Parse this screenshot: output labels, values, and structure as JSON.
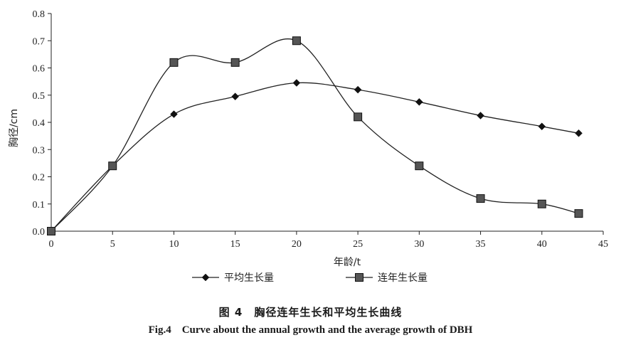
{
  "chart_data": {
    "type": "line",
    "title": "",
    "xlabel": "年龄/t",
    "ylabel": "胸径/cm",
    "xlim": [
      0,
      45
    ],
    "ylim": [
      0,
      0.8
    ],
    "xticks": [
      0,
      5,
      10,
      15,
      20,
      25,
      30,
      35,
      40,
      45
    ],
    "yticks": [
      0.0,
      0.1,
      0.2,
      0.3,
      0.4,
      0.5,
      0.6,
      0.7,
      0.8
    ],
    "ytick_labels": [
      "0.0",
      "0.1",
      "0.2",
      "0.3",
      "0.4",
      "0.5",
      "0.6",
      "0.7",
      "0.8"
    ],
    "grid": false,
    "legend_position": "bottom",
    "series": [
      {
        "name": "平均生长量",
        "marker": "diamond",
        "x": [
          0,
          5,
          10,
          15,
          20,
          25,
          30,
          35,
          40,
          43
        ],
        "values": [
          0.0,
          0.24,
          0.43,
          0.495,
          0.545,
          0.52,
          0.475,
          0.425,
          0.385,
          0.36
        ]
      },
      {
        "name": "连年生长量",
        "marker": "square",
        "x": [
          0,
          5,
          10,
          15,
          20,
          25,
          30,
          35,
          40,
          43
        ],
        "values": [
          0.0,
          0.24,
          0.62,
          0.62,
          0.7,
          0.42,
          0.24,
          0.12,
          0.1,
          0.065
        ]
      }
    ]
  },
  "caption": {
    "cn": "图 4　胸径连年生长和平均生长曲线",
    "en": "Fig.4　Curve about the annual growth and the average growth of DBH"
  }
}
